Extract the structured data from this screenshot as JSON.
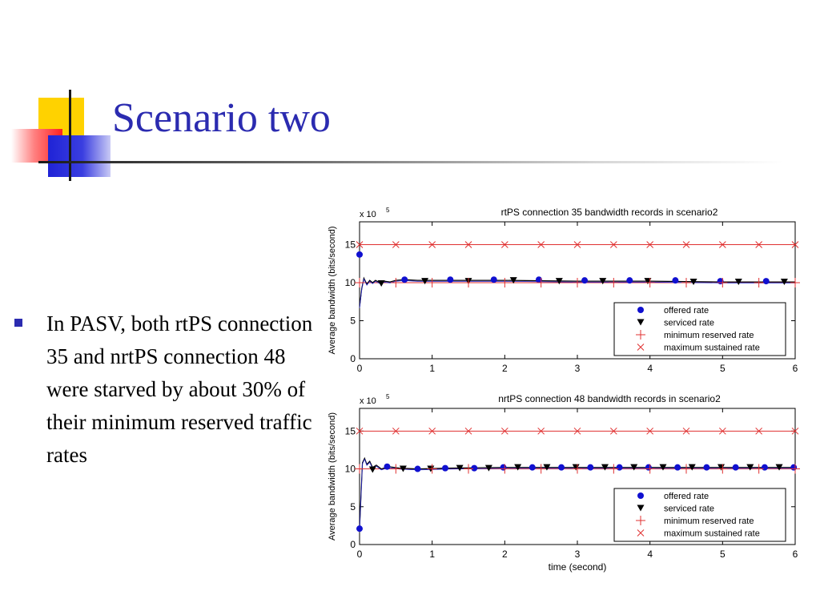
{
  "slide": {
    "title": "Scenario two",
    "bullet": "In PASV, both rtPS connection 35 and nrtPS connection 48 were starved by about 30% of their minimum reserved traffic rates"
  },
  "colors": {
    "title": "#2b2bb0",
    "offered": "#1010d0",
    "serviced": "#000000",
    "min_reserved": "#e03030",
    "max_sustained": "#e03030"
  },
  "chart_data": [
    {
      "type": "scatter",
      "title": "rtPS connection 35 bandwidth records in scenario2",
      "ylabel": "Average bandwidth (bits/second)",
      "xlabel": "",
      "exponent_label": "x 10",
      "exponent": "5",
      "xlim": [
        0,
        6
      ],
      "ylim": [
        0,
        18
      ],
      "xticks": [
        "0",
        "1",
        "2",
        "3",
        "4",
        "5",
        "6"
      ],
      "yticks": [
        "0",
        "5",
        "10",
        "15"
      ],
      "legend_position": "bottom-right",
      "series": [
        {
          "name": "offered rate",
          "marker": "circle",
          "x": [
            0,
            0.62,
            1.25,
            1.85,
            2.47,
            3.1,
            3.72,
            4.35,
            4.97,
            5.6
          ],
          "y": [
            13.7,
            10.4,
            10.4,
            10.4,
            10.4,
            10.3,
            10.3,
            10.3,
            10.2,
            10.2
          ]
        },
        {
          "name": "serviced rate",
          "marker": "triangle-down",
          "x": [
            0.3,
            0.9,
            1.5,
            2.12,
            2.75,
            3.35,
            3.97,
            4.6,
            5.22,
            5.85
          ],
          "y": [
            9.9,
            10.2,
            10.2,
            10.3,
            10.2,
            10.2,
            10.2,
            10.1,
            10.1,
            10.1
          ]
        },
        {
          "name": "minimum reserved rate",
          "marker": "plus",
          "x": [
            0,
            0.5,
            1,
            1.5,
            2,
            2.5,
            3,
            3.5,
            4,
            4.5,
            5,
            5.5,
            6
          ],
          "y": [
            10,
            10,
            10,
            10,
            10,
            10,
            10,
            10,
            10,
            10,
            10,
            10,
            10
          ]
        },
        {
          "name": "maximum sustained rate",
          "marker": "x",
          "x": [
            0,
            0.5,
            1,
            1.5,
            2,
            2.5,
            3,
            3.5,
            4,
            4.5,
            5,
            5.5,
            6
          ],
          "y": [
            15,
            15,
            15,
            15,
            15,
            15,
            15,
            15,
            15,
            15,
            15,
            15,
            15
          ]
        }
      ],
      "trace": {
        "x": [
          0,
          0.03,
          0.06,
          0.1,
          0.14,
          0.18,
          0.22,
          0.28,
          0.34,
          0.42,
          0.5,
          0.62,
          0.8,
          1.0,
          1.5,
          2.0,
          3.0,
          4.0,
          5.0,
          6.0
        ],
        "y": [
          6.8,
          9.2,
          10.6,
          9.8,
          10.3,
          10.0,
          10.3,
          10.0,
          10.2,
          10.1,
          10.3,
          10.4,
          10.3,
          10.3,
          10.3,
          10.3,
          10.2,
          10.2,
          10.1,
          10.1
        ]
      }
    },
    {
      "type": "scatter",
      "title": "nrtPS connection 48 bandwidth records in scenario2",
      "ylabel": "Average bandwidth (bits/second)",
      "xlabel": "time (second)",
      "exponent_label": "x 10",
      "exponent": "5",
      "xlim": [
        0,
        6
      ],
      "ylim": [
        0,
        18
      ],
      "xticks": [
        "0",
        "1",
        "2",
        "3",
        "4",
        "5",
        "6"
      ],
      "yticks": [
        "0",
        "5",
        "10",
        "15"
      ],
      "legend_position": "bottom-right",
      "series": [
        {
          "name": "offered rate",
          "marker": "circle",
          "x": [
            0,
            0.38,
            0.8,
            1.18,
            1.58,
            1.98,
            2.38,
            2.78,
            3.18,
            3.58,
            3.98,
            4.38,
            4.78,
            5.18,
            5.58,
            5.98
          ],
          "y": [
            2.1,
            10.3,
            10.0,
            10.1,
            10.1,
            10.2,
            10.2,
            10.2,
            10.2,
            10.2,
            10.2,
            10.2,
            10.2,
            10.2,
            10.2,
            10.2
          ]
        },
        {
          "name": "serviced rate",
          "marker": "triangle-down",
          "x": [
            0.18,
            0.6,
            0.98,
            1.38,
            1.78,
            2.18,
            2.58,
            2.98,
            3.38,
            3.78,
            4.18,
            4.58,
            4.98,
            5.38,
            5.78
          ],
          "y": [
            9.9,
            10.0,
            10.0,
            10.1,
            10.1,
            10.2,
            10.2,
            10.2,
            10.2,
            10.2,
            10.2,
            10.2,
            10.2,
            10.2,
            10.2
          ]
        },
        {
          "name": "minimum reserved rate",
          "marker": "plus",
          "x": [
            0,
            0.5,
            1,
            1.5,
            2,
            2.5,
            3,
            3.5,
            4,
            4.5,
            5,
            5.5,
            6
          ],
          "y": [
            10,
            10,
            10,
            10,
            10,
            10,
            10,
            10,
            10,
            10,
            10,
            10,
            10
          ]
        },
        {
          "name": "maximum sustained rate",
          "marker": "x",
          "x": [
            0,
            0.5,
            1,
            1.5,
            2,
            2.5,
            3,
            3.5,
            4,
            4.5,
            5,
            5.5,
            6
          ],
          "y": [
            15,
            15,
            15,
            15,
            15,
            15,
            15,
            15,
            15,
            15,
            15,
            15,
            15
          ]
        }
      ],
      "trace": {
        "x": [
          0,
          0.04,
          0.07,
          0.1,
          0.14,
          0.18,
          0.23,
          0.3,
          0.4,
          0.55,
          0.8,
          1.2,
          2.0,
          3.0,
          4.0,
          5.0,
          6.0
        ],
        "y": [
          2.1,
          10.8,
          11.4,
          10.6,
          11.0,
          10.2,
          10.5,
          10.0,
          10.3,
          10.1,
          10.0,
          10.1,
          10.2,
          10.2,
          10.2,
          10.2,
          10.2
        ]
      }
    }
  ]
}
